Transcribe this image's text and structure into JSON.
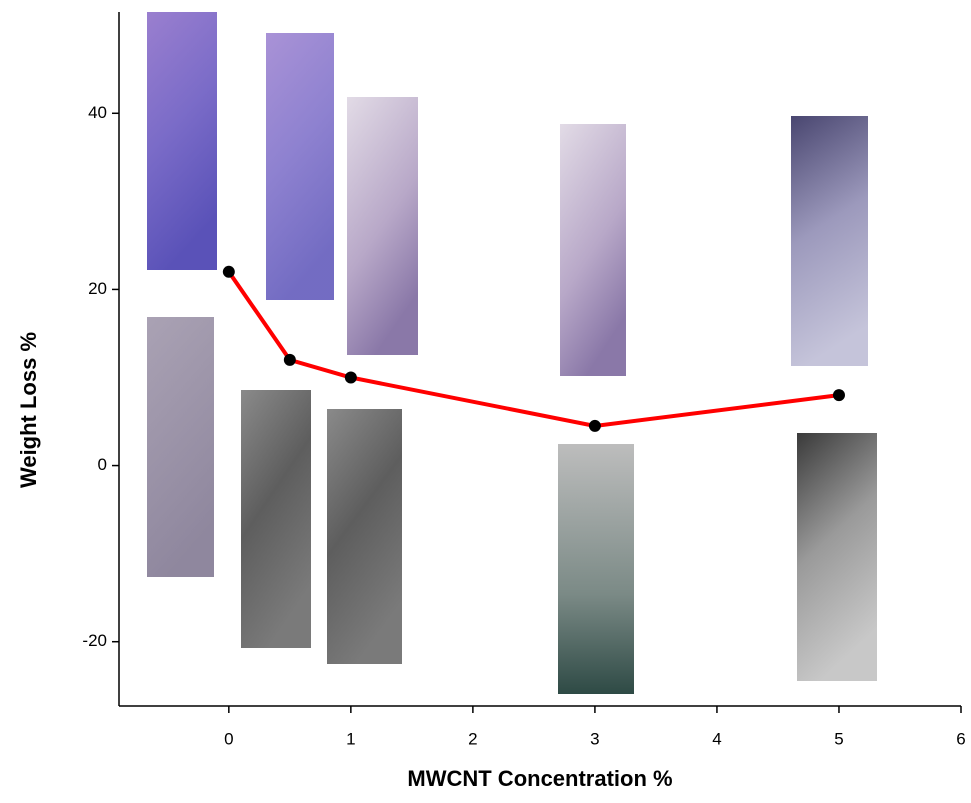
{
  "chart_data": {
    "type": "line",
    "x_label": "MWCNT Concentration %",
    "y_label": "Weight Loss %",
    "x": [
      0,
      0.5,
      1,
      3,
      5
    ],
    "series": [
      {
        "color": "#ff0000",
        "marker_color": "#000000",
        "values": [
          22,
          12,
          10,
          4.5,
          8
        ]
      }
    ],
    "xlim": [
      -0.9,
      6
    ],
    "xticks": [
      0,
      1,
      2,
      3,
      4,
      5,
      6
    ],
    "ylim": [
      -27.3,
      51.5
    ],
    "yticks": [
      -20,
      0,
      20,
      40
    ]
  }
}
